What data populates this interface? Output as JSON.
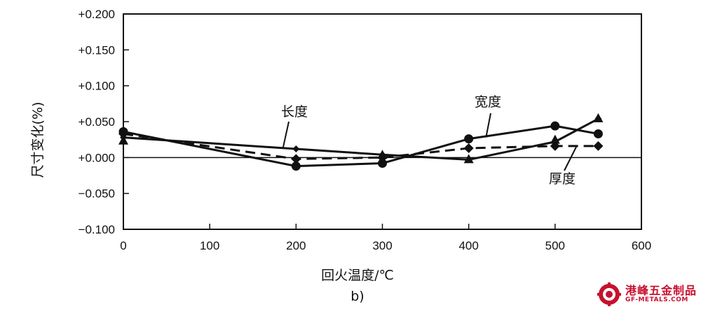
{
  "chart_data": {
    "type": "line",
    "xlabel": "回火温度/℃",
    "ylabel": "尺寸变化(%)",
    "caption": "b)",
    "xlim": [
      0,
      600
    ],
    "ylim": [
      -0.1,
      0.2
    ],
    "x_ticks": [
      "0",
      "100",
      "200",
      "300",
      "400",
      "500",
      "600"
    ],
    "y_ticks": [
      "+0.200",
      "+0.150",
      "+0.100",
      "+0.050",
      "+0.000",
      "−0.050",
      "−0.100"
    ],
    "zero_line": true,
    "series": [
      {
        "name": "长度",
        "marker": "diamond-small",
        "line": "solid",
        "points": [
          [
            0,
            0.028
          ],
          [
            200,
            0.012
          ],
          [
            300,
            0.004
          ],
          [
            400,
            -0.003
          ],
          [
            500,
            0.022
          ],
          [
            550,
            0.054
          ]
        ]
      },
      {
        "name": "宽度",
        "marker": "circle",
        "line": "solid",
        "points": [
          [
            0,
            0.036
          ],
          [
            200,
            -0.012
          ],
          [
            300,
            -0.008
          ],
          [
            400,
            0.026
          ],
          [
            500,
            0.044
          ],
          [
            550,
            0.033
          ]
        ]
      },
      {
        "name": "厚度",
        "marker": "diamond",
        "line": "dashed",
        "points": [
          [
            0,
            0.033
          ],
          [
            200,
            -0.002
          ],
          [
            300,
            0.0
          ],
          [
            400,
            0.013
          ],
          [
            500,
            0.016
          ],
          [
            550,
            0.016
          ]
        ]
      },
      {
        "name": "",
        "marker": "triangle",
        "line": "none",
        "points": [
          [
            0,
            0.024
          ],
          [
            300,
            0.004
          ],
          [
            400,
            -0.002
          ],
          [
            500,
            0.025
          ],
          [
            550,
            0.055
          ]
        ]
      }
    ],
    "annotations": [
      {
        "text": "长度",
        "target": [
          185,
          0.014
        ]
      },
      {
        "text": "宽度",
        "target": [
          420,
          0.028
        ]
      },
      {
        "text": "厚度",
        "target": [
          525,
          0.016
        ]
      }
    ]
  },
  "watermark": {
    "cn": "港峰五金制品",
    "en": "GF-METALS.COM"
  }
}
